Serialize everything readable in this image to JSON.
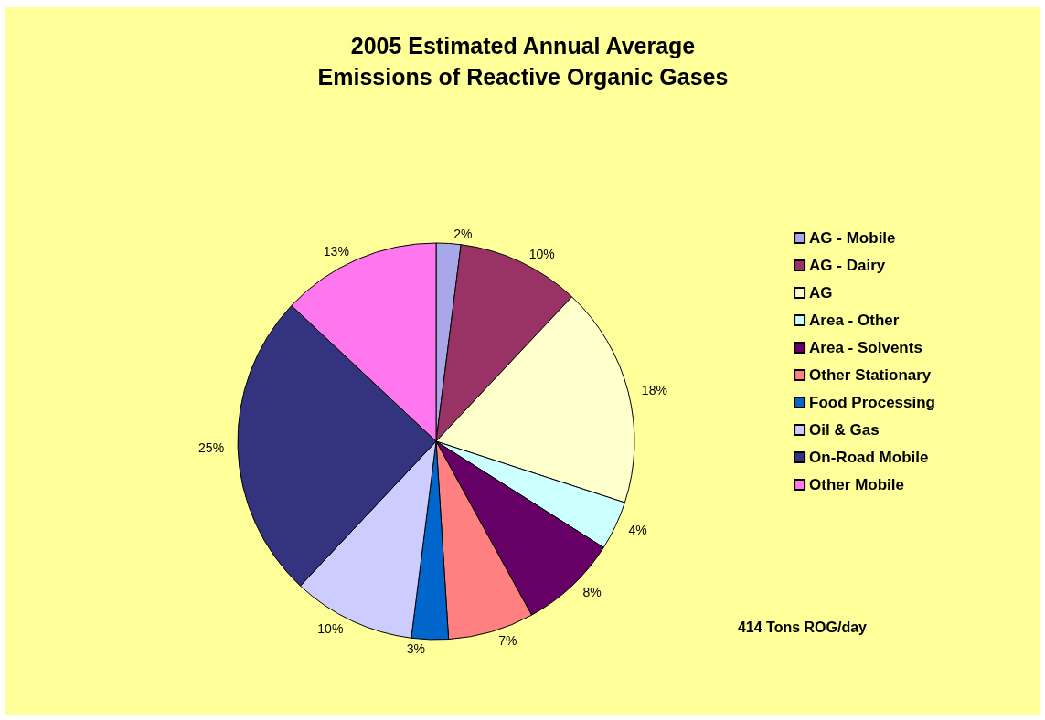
{
  "chart_data": {
    "type": "pie",
    "title": "2005 Estimated Annual Average\nEmissions of Reactive Organic Gases",
    "categories": [
      "AG - Mobile",
      "AG - Dairy",
      "AG",
      "Area - Other",
      "Area - Solvents",
      "Other Stationary",
      "Food Processing",
      "Oil & Gas",
      "On-Road Mobile",
      "Other Mobile"
    ],
    "values": [
      2,
      10,
      18,
      4,
      8,
      7,
      3,
      10,
      25,
      13
    ],
    "value_labels": [
      "2%",
      "10%",
      "18%",
      "4%",
      "8%",
      "7%",
      "3%",
      "10%",
      "25%",
      "13%"
    ],
    "colors": [
      "#a8a8e8",
      "#993366",
      "#ffffcc",
      "#ccffff",
      "#660066",
      "#ff8080",
      "#0066cc",
      "#ccccff",
      "#33337f",
      "#ff77ee"
    ],
    "legend": "right",
    "annotations": [
      "414 Tons ROG/day"
    ]
  }
}
